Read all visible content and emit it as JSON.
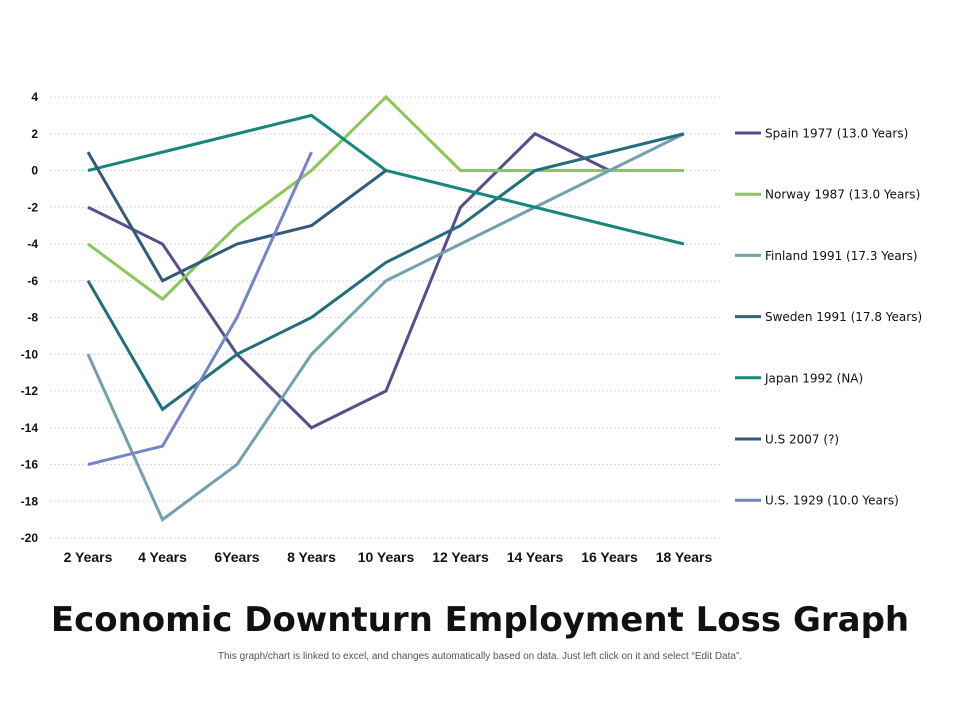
{
  "chart_data": {
    "type": "line",
    "title": "Economic Downturn Employment Loss Graph",
    "subtitle": "This graph/chart is linked to excel, and changes automatically based on data. Just left click on it and select “Edit Data”.",
    "categories": [
      "2 Years",
      "4 Years",
      "6Years",
      "8 Years",
      "10 Years",
      "12 Years",
      "14 Years",
      "16 Years",
      "18 Years"
    ],
    "ylim": [
      -20,
      4
    ],
    "yticks": [
      "4",
      "2",
      "0",
      "-2",
      "-4",
      "-6",
      "-8",
      "-10",
      "-12",
      "-14",
      "-16",
      "-18",
      "-20"
    ],
    "grid": true,
    "legend_position": "right",
    "series": [
      {
        "name": "Spain 1977 (13.0 Years)",
        "color": "#55508a",
        "values": [
          -2,
          -4,
          -10,
          -14,
          -12,
          -2,
          2,
          0,
          null
        ]
      },
      {
        "name": "Norway 1987 (13.0 Years)",
        "color": "#8cc657",
        "values": [
          -4,
          -7,
          -3,
          0,
          4,
          0,
          0,
          0,
          0
        ]
      },
      {
        "name": "Finland 1991 (17.3 Years)",
        "color": "#74a0ae",
        "values": [
          -10,
          -19,
          -16,
          -10,
          -6,
          -4,
          -2,
          0,
          2
        ]
      },
      {
        "name": "Sweden 1991 (17.8 Years)",
        "color": "#216e7c",
        "values": [
          -6,
          -13,
          -10,
          -8,
          -5,
          -3,
          0,
          1,
          2
        ]
      },
      {
        "name": "Japan 1992 (NA)",
        "color": "#16877a",
        "values": [
          0,
          1,
          2,
          3,
          0,
          -1,
          -2,
          -3,
          -4
        ]
      },
      {
        "name": "U.S 2007 (?)",
        "color": "#335a7d",
        "values": [
          1,
          -6,
          -4,
          -3,
          0,
          null,
          null,
          null,
          null
        ]
      },
      {
        "name": "U.S. 1929 (10.0 Years)",
        "color": "#7484c8",
        "values": [
          -16,
          -15,
          -8,
          1,
          null,
          null,
          null,
          null,
          null
        ]
      }
    ]
  }
}
